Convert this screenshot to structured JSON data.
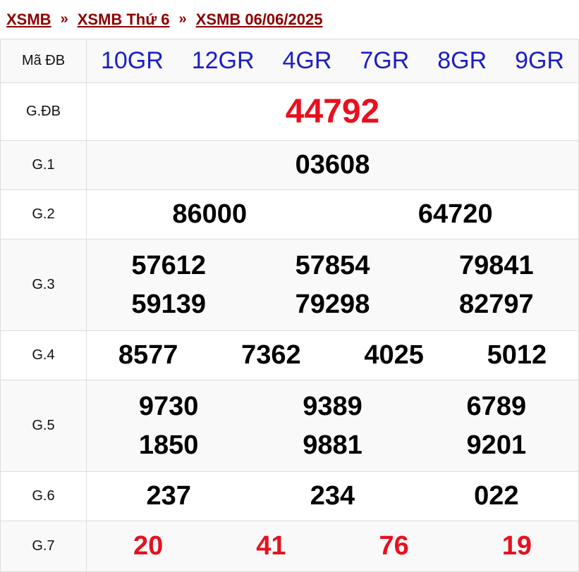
{
  "breadcrumb": [
    {
      "label": "XSMB"
    },
    {
      "label": "XSMB Thứ 6"
    },
    {
      "label": "XSMB 06/06/2025"
    }
  ],
  "separator": "»",
  "colors": {
    "link": "#8b0000",
    "code": "#1d1dc4",
    "highlight": "#e8101e"
  },
  "ma_db": {
    "label": "Mã ĐB",
    "codes": [
      "10GR",
      "12GR",
      "4GR",
      "7GR",
      "8GR",
      "9GR"
    ]
  },
  "prizes": [
    {
      "label": "G.ĐB",
      "numbers": [
        "44792"
      ]
    },
    {
      "label": "G.1",
      "numbers": [
        "03608"
      ]
    },
    {
      "label": "G.2",
      "numbers": [
        "86000",
        "64720"
      ]
    },
    {
      "label": "G.3",
      "numbers": [
        "57612",
        "57854",
        "79841",
        "59139",
        "79298",
        "82797"
      ]
    },
    {
      "label": "G.4",
      "numbers": [
        "8577",
        "7362",
        "4025",
        "5012"
      ]
    },
    {
      "label": "G.5",
      "numbers": [
        "9730",
        "9389",
        "6789",
        "1850",
        "9881",
        "9201"
      ]
    },
    {
      "label": "G.6",
      "numbers": [
        "237",
        "234",
        "022"
      ]
    },
    {
      "label": "G.7",
      "numbers": [
        "20",
        "41",
        "76",
        "19"
      ]
    }
  ]
}
